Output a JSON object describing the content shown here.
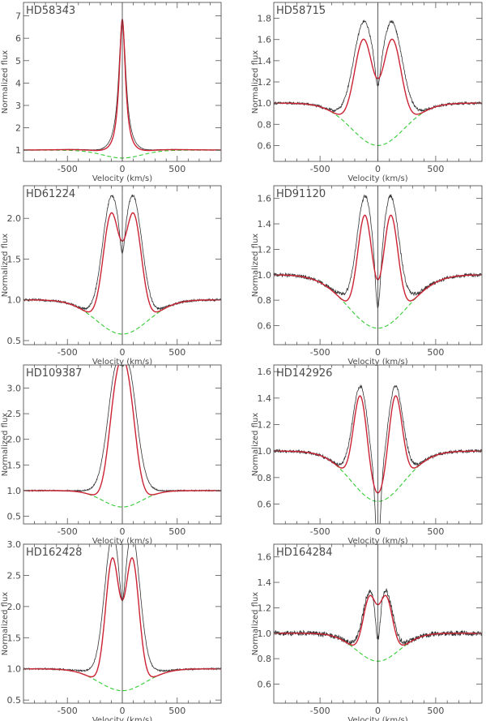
{
  "figure": {
    "x_axis_label": "Velocity  (km/s)",
    "y_axis_label": "Normalized flux",
    "colors": {
      "observed": "#333333",
      "model": "#cc2233",
      "photospheric": "#33cc33",
      "axis": "#555555",
      "zero_line": "#333333"
    }
  },
  "chart_data": [
    {
      "type": "line",
      "title": "HD58343",
      "xlabel": "Velocity  (km/s)",
      "ylabel": "Normalized flux",
      "xlim": [
        -900,
        900
      ],
      "ylim": [
        0.5,
        7.6
      ],
      "xticks": [
        -500,
        0,
        500
      ],
      "yticks": [
        1,
        2,
        3,
        4,
        5,
        6,
        7
      ],
      "ytick_labels": [
        "1",
        "2",
        "3",
        "4",
        "5",
        "6",
        "7"
      ],
      "phot": {
        "depth": 0.35,
        "width": 250
      },
      "peaks": {
        "sep": 0,
        "height": 6.2,
        "width": 38,
        "fit_width": 35,
        "wing_amp": 0.25,
        "wing_width": 120,
        "center_depth": 0
      },
      "noise": 0.01
    },
    {
      "type": "line",
      "title": "HD58715",
      "xlabel": "Velocity  (km/s)",
      "ylabel": "Normalized flux",
      "xlim": [
        -900,
        900
      ],
      "ylim": [
        0.45,
        1.95
      ],
      "xticks": [
        -500,
        0,
        500
      ],
      "yticks": [
        0.6,
        0.8,
        1.0,
        1.2,
        1.4,
        1.6,
        1.8
      ],
      "ytick_labels": [
        "0.6",
        "0.8",
        "1.0",
        "1.2",
        "1.4",
        "1.6",
        "1.8"
      ],
      "phot": {
        "depth": 0.4,
        "width": 320
      },
      "peaks": {
        "sep": 120,
        "height": 0.95,
        "width": 130,
        "fit_width": 115,
        "wing_amp": 0.25,
        "wing_width": 220,
        "center_depth": 0.22
      },
      "noise": 0.012
    },
    {
      "type": "line",
      "title": "HD61224",
      "xlabel": "Velocity  (km/s)",
      "ylabel": "Normalized flux",
      "xlim": [
        -900,
        900
      ],
      "ylim": [
        0.45,
        2.4
      ],
      "xticks": [
        -500,
        0,
        500
      ],
      "yticks": [
        0.5,
        1.0,
        1.5,
        2.0
      ],
      "ytick_labels": [
        "0.5",
        "1.0",
        "1.5",
        "2.0"
      ],
      "phot": {
        "depth": 0.42,
        "width": 330
      },
      "peaks": {
        "sep": 100,
        "height": 1.45,
        "width": 115,
        "fit_width": 105,
        "wing_amp": 0.3,
        "wing_width": 210,
        "center_depth": 0.3
      },
      "noise": 0.014
    },
    {
      "type": "line",
      "title": "HD91120",
      "xlabel": "Velocity  (km/s)",
      "ylabel": "Normalized flux",
      "xlim": [
        -900,
        900
      ],
      "ylim": [
        0.45,
        1.7
      ],
      "xticks": [
        -500,
        0,
        500
      ],
      "yticks": [
        0.6,
        0.8,
        1.0,
        1.2,
        1.4,
        1.6
      ],
      "ytick_labels": [
        "0.6",
        "0.8",
        "1.0",
        "1.2",
        "1.4",
        "1.6"
      ],
      "phot": {
        "depth": 0.42,
        "width": 360
      },
      "peaks": {
        "sep": 110,
        "height": 0.85,
        "width": 100,
        "fit_width": 90,
        "wing_amp": 0.2,
        "wing_width": 230,
        "center_depth": 0.34
      },
      "noise": 0.014
    },
    {
      "type": "line",
      "title": "HD109387",
      "xlabel": "Velocity  (km/s)",
      "ylabel": "Normalized flux",
      "xlim": [
        -900,
        900
      ],
      "ylim": [
        0.35,
        3.45
      ],
      "xticks": [
        -500,
        0,
        500
      ],
      "yticks": [
        0.5,
        1.0,
        1.5,
        2.0,
        2.5,
        3.0
      ],
      "ytick_labels": [
        "0.5",
        "1.0",
        "1.5",
        "2.0",
        "2.5",
        "3.0"
      ],
      "phot": {
        "depth": 0.32,
        "width": 250
      },
      "peaks": {
        "sep": 55,
        "height": 2.55,
        "width": 115,
        "fit_width": 100,
        "wing_amp": 0.55,
        "wing_width": 220,
        "center_depth": 0.15
      },
      "noise": 0.012
    },
    {
      "type": "line",
      "title": "HD142926",
      "xlabel": "Velocity  (km/s)",
      "ylabel": "Normalized flux",
      "xlim": [
        -900,
        900
      ],
      "ylim": [
        0.45,
        1.65
      ],
      "xticks": [
        -500,
        0,
        500
      ],
      "yticks": [
        0.6,
        0.8,
        1.0,
        1.2,
        1.4,
        1.6
      ],
      "ytick_labels": [
        "0.6",
        "0.8",
        "1.0",
        "1.2",
        "1.4",
        "1.6"
      ],
      "phot": {
        "depth": 0.38,
        "width": 320
      },
      "peaks": {
        "sep": 150,
        "height": 0.72,
        "width": 95,
        "fit_width": 85,
        "wing_amp": 0.12,
        "wing_width": 220,
        "center_depth": 0.5
      },
      "noise": 0.012
    },
    {
      "type": "line",
      "title": "HD162428",
      "xlabel": "Velocity  (km/s)",
      "ylabel": "Normalized flux",
      "xlim": [
        -900,
        900
      ],
      "ylim": [
        0.45,
        3.0
      ],
      "xticks": [
        -500,
        0,
        500
      ],
      "yticks": [
        0.5,
        1.0,
        1.5,
        2.0,
        2.5,
        3.0
      ],
      "ytick_labels": [
        "0.5",
        "1.0",
        "1.5",
        "2.0",
        "2.5",
        "3.0"
      ],
      "phot": {
        "depth": 0.35,
        "width": 300
      },
      "peaks": {
        "sep": 90,
        "height": 2.1,
        "width": 100,
        "fit_width": 88,
        "wing_amp": 0.5,
        "wing_width": 240,
        "center_depth": 0.35
      },
      "noise": 0.012
    },
    {
      "type": "line",
      "title": "HD164284",
      "xlabel": "Velocity  (km/s)",
      "ylabel": "Normalized flux",
      "xlim": [
        -900,
        900
      ],
      "ylim": [
        0.45,
        1.7
      ],
      "xticks": [
        -500,
        0,
        500
      ],
      "yticks": [
        0.6,
        0.8,
        1.0,
        1.2,
        1.4,
        1.6
      ],
      "ytick_labels": [
        "0.6",
        "0.8",
        "1.0",
        "1.2",
        "1.4",
        "1.6"
      ],
      "phot": {
        "depth": 0.22,
        "width": 260
      },
      "peaks": {
        "sep": 70,
        "height": 0.5,
        "width": 85,
        "fit_width": 80,
        "wing_amp": 0.05,
        "wing_width": 200,
        "center_depth": 0.3
      },
      "noise": 0.02
    }
  ]
}
